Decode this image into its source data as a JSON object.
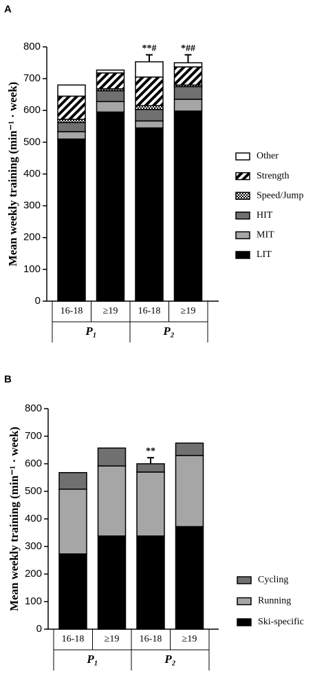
{
  "chart_data": [
    {
      "type": "stacked-bar",
      "panel_label": "A",
      "y_label": "Mean weekly training (min⁻¹ · week)",
      "categories": [
        "16-18",
        "≥19",
        "16-18",
        "≥19"
      ],
      "groups": [
        "P₁",
        "P₂"
      ],
      "ylim": [
        0,
        800
      ],
      "yticks": [
        0,
        100,
        200,
        300,
        400,
        500,
        600,
        700,
        800
      ],
      "legend": "right",
      "series": [
        {
          "name": "LIT",
          "color": "#000000",
          "values": [
            510,
            595,
            545,
            598
          ]
        },
        {
          "name": "MIT",
          "color": "#a6a6a6",
          "values": [
            23,
            33,
            22,
            37
          ]
        },
        {
          "name": "HIT",
          "color": "#707070",
          "values": [
            29,
            34,
            36,
            40
          ]
        },
        {
          "name": "Speed/Jump",
          "color": "#ffffff",
          "pattern": "checker",
          "values": [
            10,
            6,
            12,
            5
          ]
        },
        {
          "name": "Strength",
          "color": "#ffffff",
          "pattern": "hatch",
          "values": [
            73,
            50,
            90,
            57
          ]
        },
        {
          "name": "Other",
          "color": "#ffffff",
          "values": [
            35,
            9,
            48,
            13
          ]
        }
      ],
      "errors": [
        null,
        null,
        22,
        25
      ],
      "annotations": [
        null,
        null,
        "**#",
        "*##"
      ]
    },
    {
      "type": "stacked-bar",
      "panel_label": "B",
      "y_label": "Mean weekly training (min⁻¹ · week)",
      "categories": [
        "16-18",
        "≥19",
        "16-18",
        "≥19"
      ],
      "groups": [
        "P₁",
        "P₂"
      ],
      "ylim": [
        0,
        800
      ],
      "yticks": [
        0,
        100,
        200,
        300,
        400,
        500,
        600,
        700,
        800
      ],
      "legend": "right",
      "series": [
        {
          "name": "Ski-specific",
          "color": "#000000",
          "values": [
            273,
            338,
            338,
            372
          ]
        },
        {
          "name": "Running",
          "color": "#a6a6a6",
          "values": [
            235,
            254,
            232,
            258
          ]
        },
        {
          "name": "Cycling",
          "color": "#707070",
          "values": [
            60,
            65,
            30,
            45
          ]
        }
      ],
      "errors": [
        null,
        null,
        22,
        null
      ],
      "annotations": [
        null,
        null,
        "**",
        null
      ]
    }
  ]
}
